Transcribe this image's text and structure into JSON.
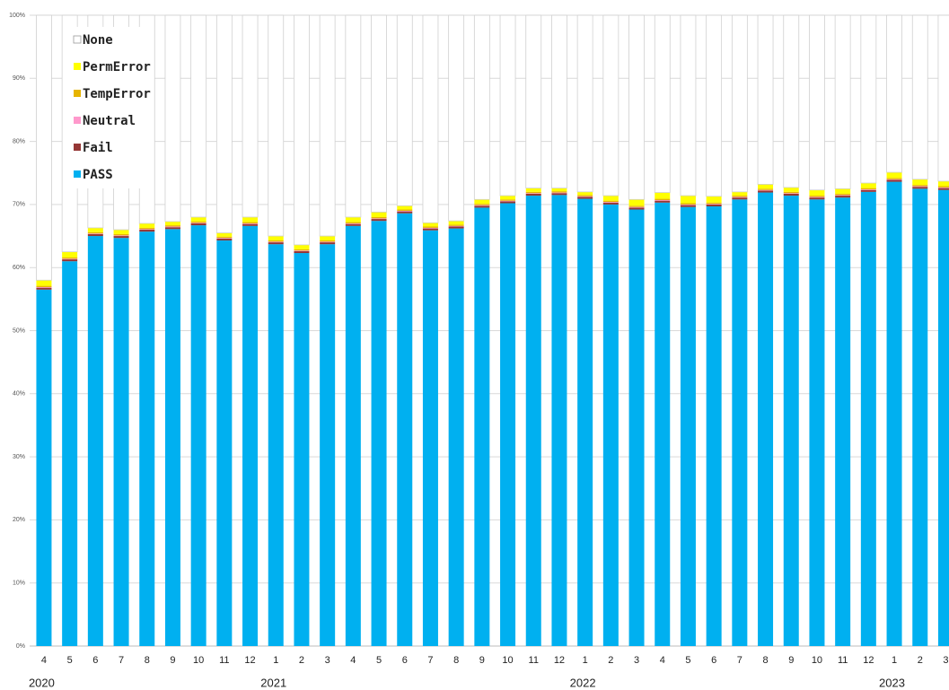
{
  "chart_data": {
    "type": "stacked-bar",
    "categories": [
      "4",
      "5",
      "6",
      "7",
      "8",
      "9",
      "10",
      "11",
      "12",
      "1",
      "2",
      "3",
      "4",
      "5",
      "6",
      "7",
      "8",
      "9",
      "10",
      "11",
      "12",
      "1",
      "2",
      "3",
      "4",
      "5",
      "6",
      "7",
      "8",
      "9",
      "10",
      "11",
      "12",
      "1",
      "2",
      "3"
    ],
    "years": [
      "2020",
      null,
      null,
      null,
      null,
      null,
      null,
      null,
      null,
      "2021",
      null,
      null,
      null,
      null,
      null,
      null,
      null,
      null,
      null,
      null,
      null,
      "2022",
      null,
      null,
      null,
      null,
      null,
      null,
      null,
      null,
      null,
      null,
      null,
      "2023",
      null,
      null
    ],
    "series": [
      {
        "name": "PASS",
        "color": "#00b0f0",
        "values": [
          56.5,
          61.0,
          65.0,
          64.7,
          65.7,
          66.1,
          66.7,
          64.3,
          66.6,
          63.7,
          62.3,
          63.7,
          66.6,
          67.4,
          68.6,
          65.9,
          66.2,
          69.5,
          70.2,
          71.4,
          71.5,
          70.9,
          70.0,
          69.2,
          70.3,
          69.6,
          69.7,
          70.8,
          71.9,
          71.4,
          70.8,
          71.1,
          72.0,
          73.6,
          72.5,
          72.3
        ]
      },
      {
        "name": "Fail",
        "color": "#953735",
        "values": [
          0.3,
          0.3,
          0.3,
          0.3,
          0.3,
          0.3,
          0.3,
          0.3,
          0.3,
          0.3,
          0.3,
          0.3,
          0.3,
          0.3,
          0.3,
          0.3,
          0.3,
          0.3,
          0.3,
          0.3,
          0.3,
          0.3,
          0.3,
          0.3,
          0.3,
          0.3,
          0.3,
          0.3,
          0.3,
          0.3,
          0.3,
          0.3,
          0.3,
          0.3,
          0.3,
          0.3
        ]
      },
      {
        "name": "Neutral",
        "color": "#ff99cc",
        "values": [
          0.1,
          0.1,
          0.1,
          0.1,
          0.1,
          0.1,
          0.1,
          0.1,
          0.1,
          0.1,
          0.1,
          0.1,
          0.1,
          0.1,
          0.1,
          0.1,
          0.1,
          0.1,
          0.1,
          0.1,
          0.1,
          0.1,
          0.1,
          0.1,
          0.1,
          0.1,
          0.1,
          0.1,
          0.1,
          0.1,
          0.1,
          0.1,
          0.1,
          0.1,
          0.1,
          0.1
        ]
      },
      {
        "name": "TempError",
        "color": "#e6b400",
        "values": [
          0.2,
          0.2,
          0.2,
          0.2,
          0.2,
          0.2,
          0.2,
          0.2,
          0.2,
          0.2,
          0.2,
          0.2,
          0.2,
          0.2,
          0.2,
          0.2,
          0.2,
          0.2,
          0.2,
          0.2,
          0.2,
          0.2,
          0.2,
          0.2,
          0.2,
          0.2,
          0.2,
          0.2,
          0.2,
          0.2,
          0.2,
          0.2,
          0.2,
          0.2,
          0.2,
          0.2
        ]
      },
      {
        "name": "PermError",
        "color": "#ffff00",
        "values": [
          0.9,
          0.9,
          0.7,
          0.7,
          0.7,
          0.6,
          0.7,
          0.6,
          0.8,
          0.7,
          0.7,
          0.7,
          0.8,
          0.8,
          0.6,
          0.6,
          0.6,
          0.7,
          0.6,
          0.6,
          0.5,
          0.5,
          0.8,
          1.0,
          1.0,
          1.2,
          1.0,
          0.6,
          0.7,
          0.7,
          0.9,
          0.8,
          0.8,
          0.9,
          0.9,
          0.8
        ]
      },
      {
        "name": "None",
        "color": "#ffffff",
        "values": [
          42.0,
          37.5,
          33.7,
          34.0,
          33.0,
          32.7,
          32.0,
          34.5,
          32.0,
          35.0,
          36.4,
          35.0,
          32.0,
          31.2,
          30.2,
          32.9,
          32.6,
          29.2,
          28.6,
          27.4,
          27.4,
          28.0,
          28.6,
          29.2,
          28.1,
          28.6,
          28.7,
          28.0,
          26.8,
          27.3,
          27.7,
          27.5,
          26.6,
          24.9,
          26.0,
          26.3
        ]
      }
    ],
    "ylim": [
      0,
      100
    ],
    "yticks": [
      {
        "value": 0,
        "label": "0%"
      },
      {
        "value": 10,
        "label": "10%"
      },
      {
        "value": 20,
        "label": "20%"
      },
      {
        "value": 30,
        "label": "30%"
      },
      {
        "value": 40,
        "label": "40%"
      },
      {
        "value": 50,
        "label": "50%"
      },
      {
        "value": 60,
        "label": "60%"
      },
      {
        "value": 70,
        "label": "70%"
      },
      {
        "value": 80,
        "label": "80%"
      },
      {
        "value": 90,
        "label": "90%"
      },
      {
        "value": 100,
        "label": "100%"
      }
    ],
    "grid": true,
    "legend": "top-left"
  }
}
